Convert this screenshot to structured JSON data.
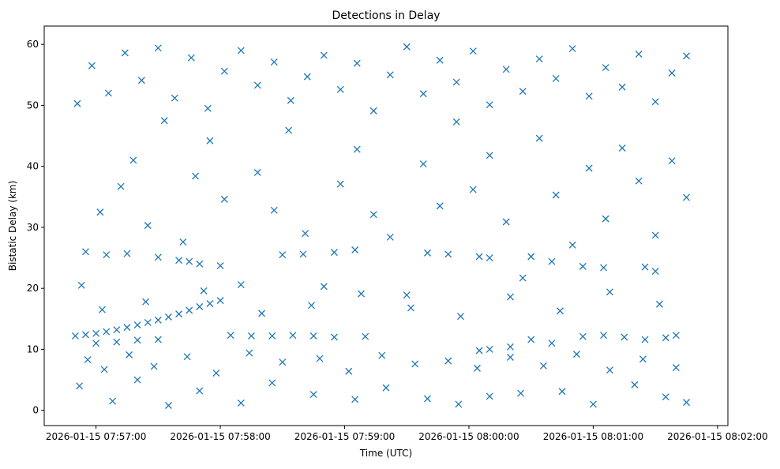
{
  "chart_data": {
    "type": "scatter",
    "title": "Detections in Delay",
    "xlabel": "Time (UTC)",
    "ylabel": "Bistatic Delay (km)",
    "x_unit": "UTC time",
    "xlim": [
      "2026-01-15 07:56:35",
      "2026-01-15 08:02:05"
    ],
    "ylim": [
      -2.5,
      63
    ],
    "x_ticks": [
      "2026-01-15 07:57:00",
      "2026-01-15 07:58:00",
      "2026-01-15 07:59:00",
      "2026-01-15 08:00:00",
      "2026-01-15 08:01:00",
      "2026-01-15 08:02:00"
    ],
    "y_ticks": [
      0,
      10,
      20,
      30,
      40,
      50,
      60
    ],
    "marker": "x",
    "marker_color": "#1f77b4",
    "grid": false,
    "legend": "none",
    "series": [
      {
        "points": [
          [
            "2026-01-15 07:56:50",
            12.2
          ],
          [
            "2026-01-15 07:56:55",
            12.4
          ],
          [
            "2026-01-15 07:57:00",
            12.6
          ],
          [
            "2026-01-15 07:57:05",
            12.9
          ],
          [
            "2026-01-15 07:57:10",
            13.2
          ],
          [
            "2026-01-15 07:57:15",
            13.6
          ],
          [
            "2026-01-15 07:57:20",
            14.0
          ],
          [
            "2026-01-15 07:57:25",
            14.4
          ],
          [
            "2026-01-15 07:57:30",
            14.8
          ],
          [
            "2026-01-15 07:57:35",
            15.3
          ],
          [
            "2026-01-15 07:57:40",
            15.8
          ],
          [
            "2026-01-15 07:57:45",
            16.4
          ],
          [
            "2026-01-15 07:57:50",
            17.0
          ],
          [
            "2026-01-15 07:57:55",
            17.5
          ],
          [
            "2026-01-15 07:58:00",
            18.0
          ],
          [
            "2026-01-15 07:57:00",
            11.0
          ],
          [
            "2026-01-15 07:57:10",
            11.2
          ],
          [
            "2026-01-15 07:57:20",
            11.5
          ],
          [
            "2026-01-15 07:57:30",
            11.6
          ],
          [
            "2026-01-15 07:58:05",
            12.3
          ],
          [
            "2026-01-15 07:58:15",
            12.2
          ],
          [
            "2026-01-15 07:58:25",
            12.2
          ],
          [
            "2026-01-15 07:58:35",
            12.3
          ],
          [
            "2026-01-15 07:58:45",
            12.2
          ],
          [
            "2026-01-15 07:58:55",
            12.0
          ],
          [
            "2026-01-15 07:59:10",
            12.1
          ],
          [
            "2026-01-15 08:00:05",
            9.8
          ],
          [
            "2026-01-15 08:00:10",
            10.0
          ],
          [
            "2026-01-15 08:00:20",
            10.4
          ],
          [
            "2026-01-15 08:00:30",
            11.6
          ],
          [
            "2026-01-15 08:00:40",
            11.0
          ],
          [
            "2026-01-15 08:00:55",
            12.1
          ],
          [
            "2026-01-15 08:01:05",
            12.3
          ],
          [
            "2026-01-15 08:01:15",
            12.0
          ],
          [
            "2026-01-15 08:01:25",
            11.6
          ],
          [
            "2026-01-15 08:01:35",
            11.9
          ],
          [
            "2026-01-15 08:01:40",
            12.3
          ],
          [
            "2026-01-15 07:56:55",
            26.0
          ],
          [
            "2026-01-15 07:57:05",
            25.5
          ],
          [
            "2026-01-15 07:57:15",
            25.7
          ],
          [
            "2026-01-15 07:57:30",
            25.1
          ],
          [
            "2026-01-15 07:57:40",
            24.6
          ],
          [
            "2026-01-15 07:57:45",
            24.4
          ],
          [
            "2026-01-15 07:57:50",
            24.0
          ],
          [
            "2026-01-15 07:58:00",
            23.7
          ],
          [
            "2026-01-15 07:58:30",
            25.5
          ],
          [
            "2026-01-15 07:58:40",
            25.6
          ],
          [
            "2026-01-15 07:58:55",
            25.9
          ],
          [
            "2026-01-15 07:59:05",
            26.3
          ],
          [
            "2026-01-15 07:59:40",
            25.8
          ],
          [
            "2026-01-15 07:59:50",
            25.6
          ],
          [
            "2026-01-15 08:00:05",
            25.2
          ],
          [
            "2026-01-15 08:00:10",
            25.0
          ],
          [
            "2026-01-15 08:00:30",
            25.2
          ],
          [
            "2026-01-15 08:00:40",
            24.4
          ],
          [
            "2026-01-15 08:00:55",
            23.6
          ],
          [
            "2026-01-15 08:01:05",
            23.4
          ],
          [
            "2026-01-15 08:01:25",
            23.5
          ],
          [
            "2026-01-15 08:01:30",
            22.8
          ],
          [
            "2026-01-15 07:56:52",
            4.0
          ],
          [
            "2026-01-15 07:57:08",
            1.5
          ],
          [
            "2026-01-15 07:57:20",
            5.0
          ],
          [
            "2026-01-15 07:57:35",
            0.8
          ],
          [
            "2026-01-15 07:57:50",
            3.2
          ],
          [
            "2026-01-15 07:58:10",
            1.2
          ],
          [
            "2026-01-15 07:58:25",
            4.5
          ],
          [
            "2026-01-15 07:58:45",
            2.6
          ],
          [
            "2026-01-15 07:59:05",
            1.8
          ],
          [
            "2026-01-15 07:59:20",
            3.7
          ],
          [
            "2026-01-15 07:59:40",
            1.9
          ],
          [
            "2026-01-15 07:59:55",
            1.0
          ],
          [
            "2026-01-15 08:00:10",
            2.3
          ],
          [
            "2026-01-15 08:00:25",
            2.8
          ],
          [
            "2026-01-15 08:00:45",
            3.1
          ],
          [
            "2026-01-15 08:01:00",
            1.0
          ],
          [
            "2026-01-15 08:01:20",
            4.2
          ],
          [
            "2026-01-15 08:01:35",
            2.2
          ],
          [
            "2026-01-15 08:01:45",
            1.3
          ],
          [
            "2026-01-15 07:56:53",
            20.5
          ],
          [
            "2026-01-15 07:57:02",
            32.5
          ],
          [
            "2026-01-15 07:57:12",
            36.7
          ],
          [
            "2026-01-15 07:57:18",
            41.0
          ],
          [
            "2026-01-15 07:57:25",
            30.3
          ],
          [
            "2026-01-15 07:57:33",
            47.5
          ],
          [
            "2026-01-15 07:57:42",
            27.6
          ],
          [
            "2026-01-15 07:57:48",
            38.4
          ],
          [
            "2026-01-15 07:57:55",
            44.2
          ],
          [
            "2026-01-15 07:58:02",
            34.6
          ],
          [
            "2026-01-15 07:58:10",
            20.6
          ],
          [
            "2026-01-15 07:58:18",
            39.0
          ],
          [
            "2026-01-15 07:58:26",
            32.8
          ],
          [
            "2026-01-15 07:58:33",
            45.9
          ],
          [
            "2026-01-15 07:58:41",
            29.0
          ],
          [
            "2026-01-15 07:58:50",
            20.3
          ],
          [
            "2026-01-15 07:58:58",
            37.1
          ],
          [
            "2026-01-15 07:59:06",
            42.8
          ],
          [
            "2026-01-15 07:59:14",
            32.1
          ],
          [
            "2026-01-15 07:59:22",
            28.4
          ],
          [
            "2026-01-15 07:59:30",
            18.9
          ],
          [
            "2026-01-15 07:59:38",
            40.4
          ],
          [
            "2026-01-15 07:59:46",
            33.5
          ],
          [
            "2026-01-15 07:59:54",
            47.3
          ],
          [
            "2026-01-15 08:00:02",
            36.2
          ],
          [
            "2026-01-15 08:00:10",
            41.8
          ],
          [
            "2026-01-15 08:00:18",
            30.9
          ],
          [
            "2026-01-15 08:00:26",
            21.7
          ],
          [
            "2026-01-15 08:00:34",
            44.6
          ],
          [
            "2026-01-15 08:00:42",
            35.3
          ],
          [
            "2026-01-15 08:00:50",
            27.1
          ],
          [
            "2026-01-15 08:00:58",
            39.7
          ],
          [
            "2026-01-15 08:01:06",
            31.4
          ],
          [
            "2026-01-15 08:01:14",
            43.0
          ],
          [
            "2026-01-15 08:01:22",
            37.6
          ],
          [
            "2026-01-15 08:01:30",
            28.7
          ],
          [
            "2026-01-15 08:01:38",
            40.9
          ],
          [
            "2026-01-15 08:01:45",
            34.9
          ],
          [
            "2026-01-15 07:56:51",
            50.3
          ],
          [
            "2026-01-15 07:56:58",
            56.5
          ],
          [
            "2026-01-15 07:57:06",
            52.0
          ],
          [
            "2026-01-15 07:57:14",
            58.6
          ],
          [
            "2026-01-15 07:57:22",
            54.1
          ],
          [
            "2026-01-15 07:57:30",
            59.4
          ],
          [
            "2026-01-15 07:57:38",
            51.2
          ],
          [
            "2026-01-15 07:57:46",
            57.8
          ],
          [
            "2026-01-15 07:57:54",
            49.5
          ],
          [
            "2026-01-15 07:58:02",
            55.6
          ],
          [
            "2026-01-15 07:58:10",
            59.0
          ],
          [
            "2026-01-15 07:58:18",
            53.3
          ],
          [
            "2026-01-15 07:58:26",
            57.1
          ],
          [
            "2026-01-15 07:58:34",
            50.8
          ],
          [
            "2026-01-15 07:58:42",
            54.7
          ],
          [
            "2026-01-15 07:58:50",
            58.2
          ],
          [
            "2026-01-15 07:58:58",
            52.6
          ],
          [
            "2026-01-15 07:59:06",
            56.9
          ],
          [
            "2026-01-15 07:59:14",
            49.1
          ],
          [
            "2026-01-15 07:59:22",
            55.0
          ],
          [
            "2026-01-15 07:59:30",
            59.6
          ],
          [
            "2026-01-15 07:59:38",
            51.9
          ],
          [
            "2026-01-15 07:59:46",
            57.4
          ],
          [
            "2026-01-15 07:59:54",
            53.8
          ],
          [
            "2026-01-15 08:00:02",
            58.9
          ],
          [
            "2026-01-15 08:00:10",
            50.1
          ],
          [
            "2026-01-15 08:00:18",
            55.9
          ],
          [
            "2026-01-15 08:00:26",
            52.3
          ],
          [
            "2026-01-15 08:00:34",
            57.6
          ],
          [
            "2026-01-15 08:00:42",
            54.4
          ],
          [
            "2026-01-15 08:00:50",
            59.3
          ],
          [
            "2026-01-15 08:00:58",
            51.5
          ],
          [
            "2026-01-15 08:01:06",
            56.2
          ],
          [
            "2026-01-15 08:01:14",
            53.0
          ],
          [
            "2026-01-15 08:01:22",
            58.4
          ],
          [
            "2026-01-15 08:01:30",
            50.6
          ],
          [
            "2026-01-15 08:01:38",
            55.3
          ],
          [
            "2026-01-15 08:01:45",
            58.1
          ],
          [
            "2026-01-15 07:56:56",
            8.3
          ],
          [
            "2026-01-15 07:57:04",
            6.7
          ],
          [
            "2026-01-15 07:57:16",
            9.1
          ],
          [
            "2026-01-15 07:57:28",
            7.2
          ],
          [
            "2026-01-15 07:57:44",
            8.8
          ],
          [
            "2026-01-15 07:57:58",
            6.1
          ],
          [
            "2026-01-15 07:58:14",
            9.4
          ],
          [
            "2026-01-15 07:58:30",
            7.9
          ],
          [
            "2026-01-15 07:58:48",
            8.5
          ],
          [
            "2026-01-15 07:59:02",
            6.4
          ],
          [
            "2026-01-15 07:59:18",
            9.0
          ],
          [
            "2026-01-15 07:59:34",
            7.6
          ],
          [
            "2026-01-15 07:59:50",
            8.1
          ],
          [
            "2026-01-15 08:00:04",
            6.9
          ],
          [
            "2026-01-15 08:00:20",
            8.7
          ],
          [
            "2026-01-15 08:00:36",
            7.3
          ],
          [
            "2026-01-15 08:00:52",
            9.2
          ],
          [
            "2026-01-15 08:01:08",
            6.6
          ],
          [
            "2026-01-15 08:01:24",
            8.4
          ],
          [
            "2026-01-15 08:01:40",
            7.0
          ],
          [
            "2026-01-15 07:57:03",
            16.5
          ],
          [
            "2026-01-15 07:57:24",
            17.8
          ],
          [
            "2026-01-15 07:57:52",
            19.6
          ],
          [
            "2026-01-15 07:58:20",
            15.9
          ],
          [
            "2026-01-15 07:58:44",
            17.2
          ],
          [
            "2026-01-15 07:59:08",
            19.1
          ],
          [
            "2026-01-15 07:59:32",
            16.8
          ],
          [
            "2026-01-15 07:59:56",
            15.4
          ],
          [
            "2026-01-15 08:00:20",
            18.6
          ],
          [
            "2026-01-15 08:00:44",
            16.3
          ],
          [
            "2026-01-15 08:01:08",
            19.4
          ],
          [
            "2026-01-15 08:01:32",
            17.4
          ]
        ]
      }
    ]
  }
}
